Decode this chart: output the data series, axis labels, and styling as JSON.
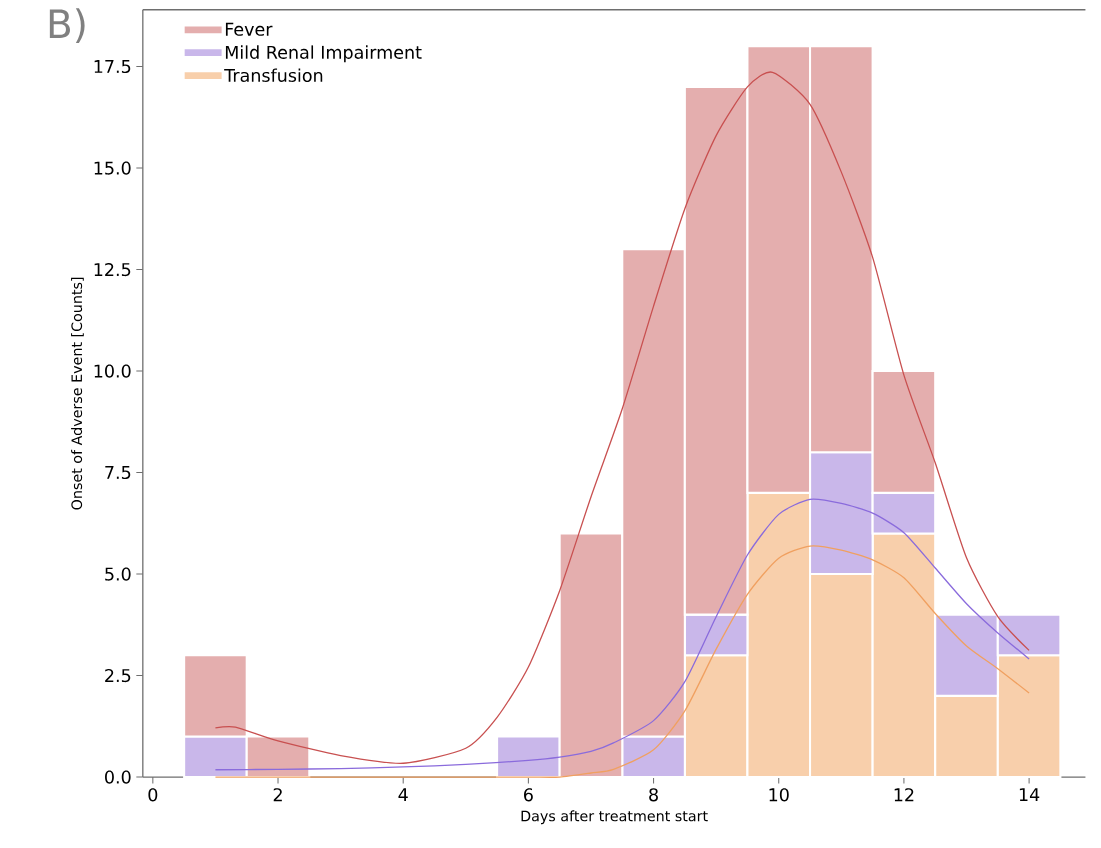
{
  "chart_data": {
    "type": "bar",
    "annotations": [
      "B)"
    ],
    "xlabel": "Days after treatment start",
    "ylabel": "Onset of Adverse Event [Counts]",
    "x": [
      1,
      2,
      3,
      4,
      5,
      6,
      7,
      8,
      9,
      10,
      11,
      12,
      13,
      14
    ],
    "stacked": true,
    "legend": "top left",
    "series": [
      {
        "name": "Transfusion",
        "color": "#f8cfab",
        "values": [
          0,
          0,
          0,
          0,
          0,
          0,
          0,
          0,
          3,
          7,
          5,
          6,
          2,
          3
        ]
      },
      {
        "name": "Mild Renal Impairment",
        "color": "#c9b7ea",
        "values": [
          1,
          0,
          0,
          0,
          0,
          1,
          0,
          1,
          1,
          0,
          3,
          1,
          2,
          1
        ]
      },
      {
        "name": "Fever",
        "color": "#e4aeae",
        "values": [
          2,
          1,
          0,
          0,
          0,
          0,
          6,
          12,
          13,
          11,
          10,
          3,
          0,
          0
        ]
      },
      {
        "type": "line",
        "color": "#f0a060",
        "x": [
          1,
          2,
          3,
          4,
          5,
          6,
          6.5,
          7,
          7.36,
          8,
          8.5,
          9,
          9.5,
          10,
          10.5,
          11,
          11.5,
          12,
          12.5,
          13,
          13.5,
          14
        ],
        "values": [
          0,
          0,
          0,
          0,
          0,
          0,
          0,
          0.1,
          0.19,
          0.67,
          1.63,
          3.15,
          4.5,
          5.39,
          5.69,
          5.59,
          5.35,
          4.91,
          4.03,
          3.23,
          2.67,
          2.07
        ]
      },
      {
        "type": "line",
        "color": "#8a6bdc",
        "x": [
          1,
          2,
          3,
          4,
          5,
          6,
          6.5,
          7,
          7.36,
          8,
          8.5,
          9,
          9.5,
          10,
          10.5,
          11,
          11.5,
          12,
          12.5,
          13,
          13.5,
          14
        ],
        "values": [
          0.18,
          0.19,
          0.21,
          0.25,
          0.31,
          0.41,
          0.49,
          0.63,
          0.84,
          1.39,
          2.35,
          3.95,
          5.47,
          6.47,
          6.84,
          6.74,
          6.5,
          6.02,
          5.15,
          4.27,
          3.55,
          2.91
        ]
      },
      {
        "type": "line",
        "color": "#c85050",
        "x": [
          1,
          1.32,
          2,
          3,
          4,
          5,
          5.5,
          6,
          6.5,
          7,
          7.5,
          8,
          8.5,
          9,
          9.5,
          9.9,
          10.5,
          11,
          11.5,
          12,
          12.5,
          13,
          13.5,
          14
        ],
        "values": [
          1.21,
          1.23,
          0.89,
          0.53,
          0.34,
          0.71,
          1.47,
          2.71,
          4.59,
          6.9,
          9.07,
          11.6,
          14.0,
          15.8,
          17.0,
          17.36,
          16.57,
          14.9,
          12.8,
          9.9,
          7.74,
          5.4,
          3.95,
          3.12
        ]
      }
    ],
    "xlim": [
      -0.16,
      14.9
    ],
    "ylim": [
      0,
      18.9
    ],
    "xticks": [
      0,
      2,
      4,
      6,
      8,
      10,
      12,
      14
    ],
    "yticks": [
      {
        "value": 0,
        "label": "0.0"
      },
      {
        "value": 2.5,
        "label": "2.5"
      },
      {
        "value": 5,
        "label": "5.0"
      },
      {
        "value": 7.5,
        "label": "7.5"
      },
      {
        "value": 10,
        "label": "10.0"
      },
      {
        "value": 12.5,
        "label": "12.5"
      },
      {
        "value": 15,
        "label": "15.0"
      },
      {
        "value": 17.5,
        "label": "17.5"
      }
    ]
  }
}
